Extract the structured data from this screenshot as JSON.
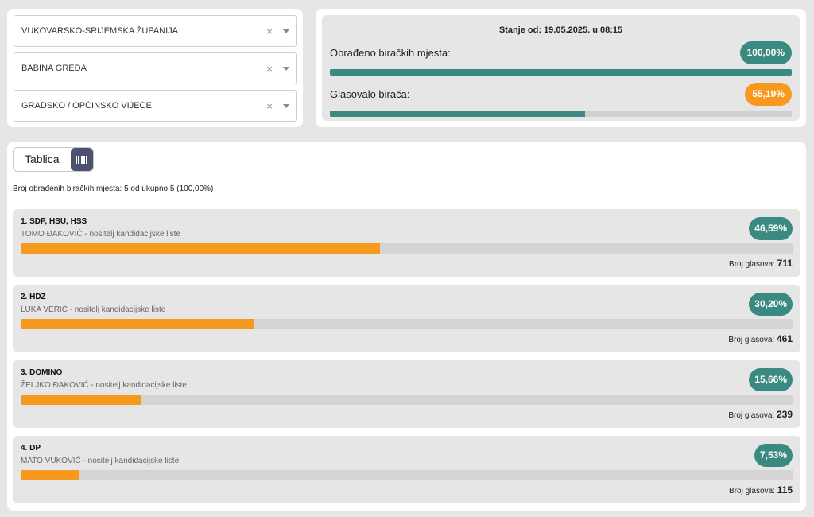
{
  "filters": {
    "county": "VUKOVARSKO-SRIJEMSKA ŽUPANIJA",
    "municipality": "BABINA GREDA",
    "body": "GRADSKO / OPĆINSKO VIJEĆE",
    "clear_glyph": "×"
  },
  "status": {
    "as_of": "Stanje od: 19.05.2025. u 08:15",
    "processed_label": "Obrađeno biračkih mjesta:",
    "processed_value": "100,00%",
    "processed_fraction": 1.0,
    "turnout_label": "Glasovalo birača:",
    "turnout_value": "55,19%",
    "turnout_fraction": 0.5519
  },
  "view_toggle": {
    "table_label": "Tablica",
    "chart_icon": "bar-chart-icon",
    "active": "chart"
  },
  "counted_text": "Broj obrađenih biračkih mjesta: 5 od ukupno 5 (100,00%)",
  "votes_label": "Broj glasova:",
  "parties": [
    {
      "name": "1. SDP, HSU, HSS",
      "leader": "TOMO ĐAKOVIĆ - nositelj kandidacijske liste",
      "percent": "46,59%",
      "fraction": 0.4659,
      "votes": "711"
    },
    {
      "name": "2. HDZ",
      "leader": "LUKA VERIĆ - nositelj kandidacijske liste",
      "percent": "30,20%",
      "fraction": 0.302,
      "votes": "461"
    },
    {
      "name": "3. DOMINO",
      "leader": "ŽELJKO ĐAKOVIĆ - nositelj kandidacijske liste",
      "percent": "15,66%",
      "fraction": 0.1566,
      "votes": "239"
    },
    {
      "name": "4. DP",
      "leader": "MATO VUKOVIĆ - nositelj kandidacijske liste",
      "percent": "7,53%",
      "fraction": 0.0753,
      "votes": "115"
    }
  ],
  "colors": {
    "teal": "#3a8a82",
    "orange": "#f7991e",
    "toggle_active": "#4a5270"
  }
}
